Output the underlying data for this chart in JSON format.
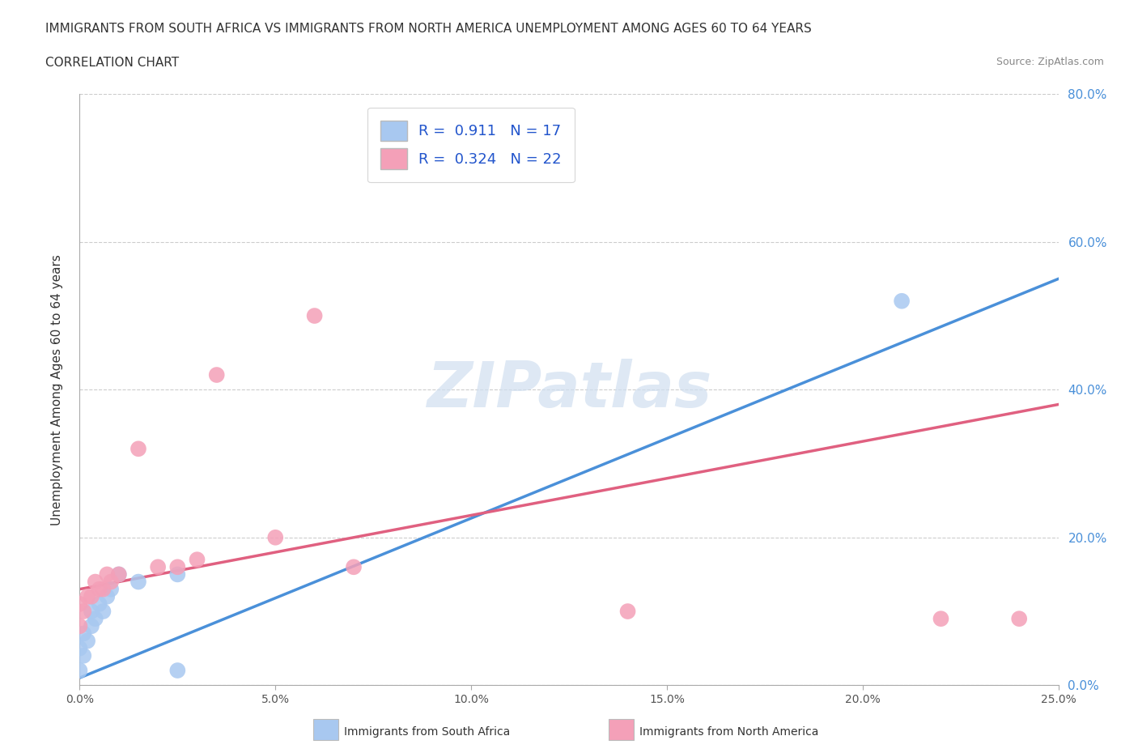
{
  "title_line1": "IMMIGRANTS FROM SOUTH AFRICA VS IMMIGRANTS FROM NORTH AMERICA UNEMPLOYMENT AMONG AGES 60 TO 64 YEARS",
  "title_line2": "CORRELATION CHART",
  "source": "Source: ZipAtlas.com",
  "ylabel": "Unemployment Among Ages 60 to 64 years",
  "watermark": "ZIPatlas",
  "blue_color": "#a8c8f0",
  "pink_color": "#f4a0b8",
  "blue_line_color": "#4a90d9",
  "pink_line_color": "#e06080",
  "r_blue": 0.911,
  "n_blue": 17,
  "r_pink": 0.324,
  "n_pink": 22,
  "xlim": [
    0.0,
    0.25
  ],
  "ylim": [
    0.0,
    0.8
  ],
  "xticks": [
    0.0,
    0.05,
    0.1,
    0.15,
    0.2,
    0.25
  ],
  "yticks": [
    0.0,
    0.2,
    0.4,
    0.6,
    0.8
  ],
  "blue_scatter_x": [
    0.0,
    0.0,
    0.001,
    0.001,
    0.002,
    0.003,
    0.003,
    0.004,
    0.005,
    0.006,
    0.007,
    0.008,
    0.01,
    0.015,
    0.025,
    0.025,
    0.21
  ],
  "blue_scatter_y": [
    0.02,
    0.05,
    0.04,
    0.07,
    0.06,
    0.08,
    0.1,
    0.09,
    0.11,
    0.1,
    0.12,
    0.13,
    0.15,
    0.14,
    0.15,
    0.02,
    0.52
  ],
  "pink_scatter_x": [
    0.0,
    0.0,
    0.001,
    0.002,
    0.003,
    0.004,
    0.005,
    0.006,
    0.007,
    0.008,
    0.01,
    0.015,
    0.02,
    0.025,
    0.03,
    0.035,
    0.05,
    0.06,
    0.07,
    0.14,
    0.22,
    0.24
  ],
  "pink_scatter_y": [
    0.08,
    0.11,
    0.1,
    0.12,
    0.12,
    0.14,
    0.13,
    0.13,
    0.15,
    0.14,
    0.15,
    0.32,
    0.16,
    0.16,
    0.17,
    0.42,
    0.2,
    0.5,
    0.16,
    0.1,
    0.09,
    0.09
  ],
  "blue_line_x": [
    0.0,
    0.25
  ],
  "blue_line_y": [
    0.01,
    0.55
  ],
  "pink_line_x": [
    0.0,
    0.25
  ],
  "pink_line_y": [
    0.13,
    0.38
  ],
  "legend_label_blue": "Immigrants from South Africa",
  "legend_label_pink": "Immigrants from North America",
  "bg_color": "#ffffff",
  "grid_color": "#cccccc",
  "right_yaxis_color": "#4a90d9",
  "title_fontsize": 11,
  "axis_label_fontsize": 11,
  "tick_fontsize": 10,
  "legend_fontsize": 13
}
